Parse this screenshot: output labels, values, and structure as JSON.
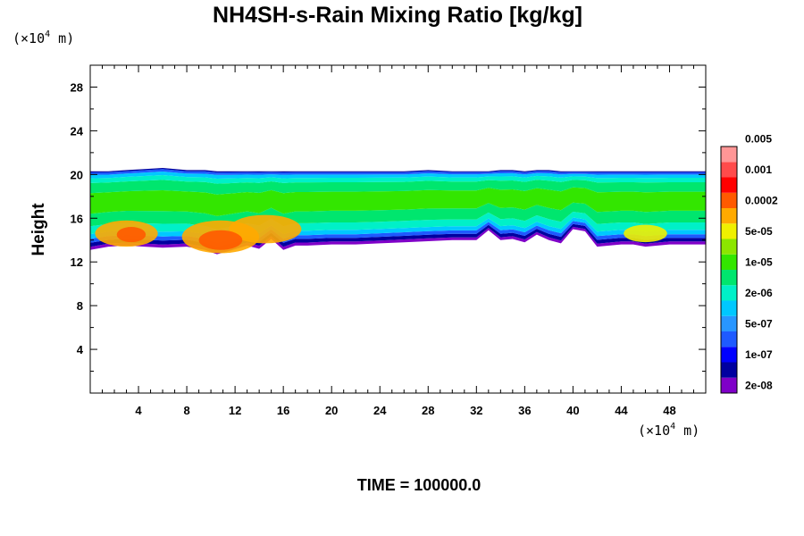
{
  "chart_data": {
    "type": "heatmap",
    "title": "NH4SH-s-Rain Mixing Ratio [kg/kg]",
    "ylabel": "Height",
    "xlabel": "",
    "x_unit": {
      "prefix": "(×10",
      "exp": "4",
      "suffix": " m)"
    },
    "y_unit": {
      "prefix": "(×10",
      "exp": "4",
      "suffix": " m)"
    },
    "xlim": [
      0,
      51
    ],
    "ylim": [
      0,
      30
    ],
    "x_ticks": [
      4,
      8,
      12,
      16,
      20,
      24,
      28,
      32,
      36,
      40,
      44,
      48
    ],
    "y_ticks": [
      4,
      8,
      12,
      16,
      20,
      24,
      28
    ],
    "x_tick_labels": [
      "4",
      "8",
      "12",
      "16",
      "20",
      "24",
      "28",
      "32",
      "36",
      "40",
      "44",
      "48"
    ],
    "y_tick_labels": [
      "4",
      "8",
      "12",
      "16",
      "20",
      "24",
      "28"
    ],
    "colorbar": {
      "colors": [
        "#7f00c8",
        "#0000a0",
        "#0000ff",
        "#1e5aff",
        "#2896ff",
        "#00c8ff",
        "#00f0c8",
        "#00e66e",
        "#33e600",
        "#8ce600",
        "#f0f000",
        "#ffaa00",
        "#ff5a00",
        "#ff0000",
        "#ff4b4b",
        "#ff9696"
      ],
      "labels": [
        "2e-08",
        "1e-07",
        "5e-07",
        "2e-06",
        "1e-05",
        "5e-05",
        "0.0002",
        "0.001",
        "0.005"
      ]
    },
    "layer": {
      "x": [
        0,
        1.5,
        3,
        4.5,
        6,
        8,
        9.5,
        10.5,
        11.5,
        13,
        14,
        15,
        16,
        17,
        18,
        20,
        22,
        24,
        26,
        28,
        30,
        32,
        33,
        34,
        35,
        36,
        37,
        38,
        39,
        40,
        41,
        42,
        43,
        44,
        45,
        46,
        47,
        48,
        49,
        50,
        51
      ],
      "top": [
        20.3,
        20.3,
        20.4,
        20.5,
        20.6,
        20.4,
        20.4,
        20.3,
        20.3,
        20.3,
        20.3,
        20.3,
        20.3,
        20.3,
        20.3,
        20.3,
        20.3,
        20.3,
        20.3,
        20.4,
        20.3,
        20.3,
        20.3,
        20.4,
        20.4,
        20.3,
        20.4,
        20.4,
        20.3,
        20.3,
        20.3,
        20.3,
        20.3,
        20.3,
        20.3,
        20.3,
        20.3,
        20.3,
        20.3,
        20.3,
        20.3
      ],
      "bottom": [
        13.1,
        13.4,
        13.5,
        13.4,
        13.3,
        13.4,
        13.1,
        12.7,
        13.0,
        13.5,
        13.2,
        14.1,
        13.1,
        13.5,
        13.5,
        13.6,
        13.6,
        13.7,
        13.8,
        13.9,
        14.0,
        14.0,
        14.9,
        14.0,
        14.1,
        13.8,
        14.5,
        14.0,
        13.7,
        15.0,
        14.8,
        13.4,
        13.5,
        13.6,
        13.6,
        13.4,
        13.5,
        13.6,
        13.6,
        13.6,
        13.6
      ]
    },
    "hotspots": [
      {
        "x": 10.8,
        "y": 14.3,
        "rx": 3.2,
        "ry": 1.5,
        "level": 11
      },
      {
        "x": 14.5,
        "y": 15.0,
        "rx": 3.0,
        "ry": 1.3,
        "level": 11
      },
      {
        "x": 3.0,
        "y": 14.6,
        "rx": 2.6,
        "ry": 1.2,
        "level": 11
      },
      {
        "x": 46.0,
        "y": 14.6,
        "rx": 1.8,
        "ry": 0.8,
        "level": 10
      },
      {
        "x": 10.8,
        "y": 14.0,
        "rx": 1.8,
        "ry": 0.9,
        "level": 12
      },
      {
        "x": 3.4,
        "y": 14.5,
        "rx": 1.2,
        "ry": 0.7,
        "level": 12
      }
    ],
    "time_label": "TIME = 100000.0"
  }
}
